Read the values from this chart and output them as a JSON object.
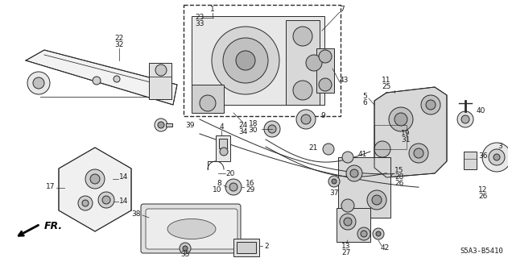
{
  "background_color": "#ffffff",
  "diagram_code": "S5A3-B5410",
  "fr_label": "FR.",
  "line_color": "#2a2a2a",
  "label_fontsize": 6.5,
  "label_color": "#1a1a1a",
  "figsize": [
    6.31,
    3.2
  ],
  "dpi": 100
}
